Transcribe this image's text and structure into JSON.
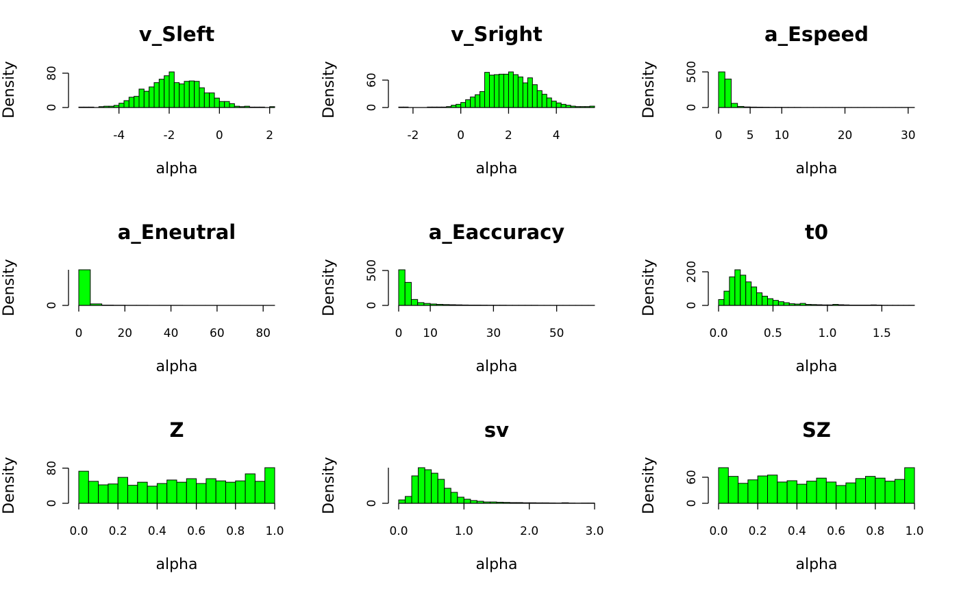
{
  "chart_data": [
    {
      "type": "histogram",
      "title": "v_Sleft",
      "xlabel": "alpha",
      "ylabel": "Density",
      "color": "#00ff00",
      "bins": [
        -5.6,
        -5.4,
        -5.2,
        -5,
        -4.8,
        -4.6,
        -4.4,
        -4.2,
        -4,
        -3.8,
        -3.6,
        -3.4,
        -3.2,
        -3,
        -2.8,
        -2.6,
        -2.4,
        -2.2,
        -2,
        -1.8,
        -1.6,
        -1.4,
        -1.2,
        -1,
        -0.8,
        -0.6,
        -0.4,
        -0.2,
        0,
        0.2,
        0.4,
        0.6,
        0.8,
        1,
        1.2,
        1.4,
        1.6,
        1.8,
        2,
        2.2
      ],
      "values": [
        1,
        1,
        1,
        0,
        2,
        3,
        3,
        5,
        10,
        16,
        24,
        26,
        43,
        38,
        48,
        58,
        66,
        74,
        83,
        58,
        55,
        61,
        62,
        61,
        46,
        34,
        34,
        22,
        14,
        14,
        9,
        3,
        2,
        3,
        1,
        1,
        1,
        0,
        2
      ],
      "xlim": [
        -5.6,
        2.2
      ],
      "ylim": [
        0,
        83
      ],
      "xticks": [
        -4,
        -2,
        0,
        2
      ],
      "yticks": [
        0,
        80
      ]
    },
    {
      "type": "histogram",
      "title": "v_Sright",
      "xlabel": "alpha",
      "ylabel": "Density",
      "color": "#00ff00",
      "bins": [
        -2.6,
        -2.4,
        -2.2,
        -2,
        -1.8,
        -1.6,
        -1.4,
        -1.2,
        -1,
        -0.8,
        -0.6,
        -0.4,
        -0.2,
        0,
        0.2,
        0.4,
        0.6,
        0.8,
        1,
        1.2,
        1.4,
        1.6,
        1.8,
        2,
        2.2,
        2.4,
        2.6,
        2.8,
        3,
        3.2,
        3.4,
        3.6,
        3.8,
        4,
        4.2,
        4.4,
        4.6,
        4.8,
        5,
        5.2,
        5.4,
        5.6
      ],
      "values": [
        1,
        1,
        0,
        0,
        0,
        0,
        1,
        1,
        1,
        1,
        2,
        5,
        7,
        11,
        17,
        23,
        28,
        35,
        77,
        71,
        72,
        73,
        73,
        78,
        72,
        67,
        54,
        65,
        50,
        37,
        29,
        21,
        14,
        10,
        7,
        5,
        3,
        2,
        2,
        2,
        3
      ],
      "xlim": [
        -2.6,
        5.6
      ],
      "ylim": [
        0,
        78
      ],
      "xticks": [
        -2,
        0,
        2,
        4
      ],
      "yticks": [
        0,
        60
      ]
    },
    {
      "type": "histogram",
      "title": "a_Espeed",
      "xlabel": "alpha",
      "ylabel": "Density",
      "color": "#00ff00",
      "bins": [
        0,
        1,
        2,
        3,
        4,
        5,
        6,
        7,
        8,
        9,
        10,
        11,
        12,
        13,
        14,
        15,
        16,
        17,
        18,
        19,
        20,
        21,
        22,
        23,
        24,
        25,
        26,
        27,
        28,
        29,
        30,
        31
      ],
      "values": [
        500,
        400,
        58,
        15,
        8,
        6,
        5,
        4,
        3,
        3,
        2,
        2,
        2,
        1,
        1,
        1,
        1,
        1,
        1,
        1,
        1,
        1,
        1,
        1,
        1,
        1,
        1,
        1,
        1,
        1,
        1
      ],
      "xlim": [
        0,
        31
      ],
      "ylim": [
        0,
        500
      ],
      "xticks": [
        0,
        5,
        10,
        20,
        30
      ],
      "yticks": [
        0,
        500
      ]
    },
    {
      "type": "histogram",
      "title": "a_Eneutral",
      "xlabel": "alpha",
      "ylabel": "Density",
      "color": "#00ff00",
      "bins": [
        0,
        5,
        10,
        15,
        20,
        25,
        30,
        35,
        40,
        45,
        50,
        55,
        60,
        65,
        70,
        75,
        80,
        85
      ],
      "values": [
        950,
        40,
        8,
        5,
        3,
        3,
        2,
        2,
        2,
        1,
        1,
        1,
        1,
        1,
        1,
        1,
        1
      ],
      "xlim": [
        0,
        85
      ],
      "ylim": [
        0,
        950
      ],
      "xticks": [
        0,
        20,
        40,
        60,
        80
      ],
      "yticks": [
        0
      ]
    },
    {
      "type": "histogram",
      "title": "a_Eaccuracy",
      "xlabel": "alpha",
      "ylabel": "Density",
      "color": "#00ff00",
      "bins": [
        0,
        2,
        4,
        6,
        8,
        10,
        12,
        14,
        16,
        18,
        20,
        22,
        24,
        26,
        28,
        30,
        32,
        34,
        36,
        38,
        40,
        42,
        44,
        46,
        48,
        50,
        52,
        54,
        56,
        58,
        60,
        62
      ],
      "values": [
        510,
        330,
        85,
        40,
        28,
        20,
        15,
        12,
        10,
        8,
        6,
        5,
        5,
        4,
        3,
        3,
        3,
        2,
        2,
        2,
        2,
        2,
        1,
        1,
        1,
        1,
        1,
        1,
        1,
        1,
        1
      ],
      "xlim": [
        0,
        62
      ],
      "ylim": [
        0,
        510
      ],
      "xticks": [
        0,
        10,
        30,
        50
      ],
      "yticks": [
        0,
        500
      ]
    },
    {
      "type": "histogram",
      "title": "t0",
      "xlabel": "alpha",
      "ylabel": "Density",
      "color": "#00ff00",
      "bins": [
        0,
        0.05,
        0.1,
        0.15,
        0.2,
        0.25,
        0.3,
        0.35,
        0.4,
        0.45,
        0.5,
        0.55,
        0.6,
        0.65,
        0.7,
        0.75,
        0.8,
        0.85,
        0.9,
        0.95,
        1,
        1.05,
        1.1,
        1.15,
        1.2,
        1.25,
        1.3,
        1.35,
        1.4,
        1.45,
        1.5,
        1.55,
        1.6,
        1.65,
        1.7,
        1.75,
        1.8
      ],
      "values": [
        35,
        85,
        170,
        212,
        180,
        140,
        110,
        75,
        55,
        40,
        30,
        22,
        16,
        10,
        8,
        12,
        6,
        5,
        4,
        3,
        3,
        6,
        4,
        3,
        2,
        2,
        2,
        2,
        3,
        2,
        1,
        1,
        1,
        1,
        1,
        1
      ],
      "xlim": [
        0,
        1.8
      ],
      "ylim": [
        0,
        212
      ],
      "xticks": [
        {
          "value": 0,
          "label": "0.0"
        },
        0.5,
        {
          "value": 1,
          "label": "1.0"
        },
        1.5
      ],
      "yticks": [
        0,
        200
      ]
    },
    {
      "type": "histogram",
      "title": "Z",
      "xlabel": "alpha",
      "ylabel": "Density",
      "color": "#00ff00",
      "bins": [
        0,
        0.05,
        0.1,
        0.15,
        0.2,
        0.25,
        0.3,
        0.35,
        0.4,
        0.45,
        0.5,
        0.55,
        0.6,
        0.65,
        0.7,
        0.75,
        0.8,
        0.85,
        0.9,
        0.95,
        1
      ],
      "values": [
        73,
        50,
        42,
        44,
        59,
        41,
        48,
        39,
        45,
        53,
        48,
        56,
        45,
        56,
        51,
        48,
        51,
        67,
        50,
        81
      ],
      "xlim": [
        0,
        1
      ],
      "ylim": [
        0,
        81
      ],
      "xticks": [
        {
          "value": 0,
          "label": "0.0"
        },
        0.2,
        0.4,
        0.6,
        0.8,
        {
          "value": 1,
          "label": "1.0"
        }
      ],
      "yticks": [
        0,
        80
      ]
    },
    {
      "type": "histogram",
      "title": "sv",
      "xlabel": "alpha",
      "ylabel": "Density",
      "color": "#00ff00",
      "bins": [
        0,
        0.1,
        0.2,
        0.3,
        0.4,
        0.5,
        0.6,
        0.7,
        0.8,
        0.9,
        1,
        1.1,
        1.2,
        1.3,
        1.4,
        1.5,
        1.6,
        1.7,
        1.8,
        1.9,
        2,
        2.1,
        2.2,
        2.3,
        2.4,
        2.5,
        2.6,
        2.7,
        2.8,
        2.9,
        3
      ],
      "values": [
        38,
        77,
        308,
        400,
        377,
        338,
        269,
        169,
        123,
        69,
        46,
        31,
        23,
        15,
        15,
        12,
        10,
        8,
        8,
        6,
        6,
        5,
        5,
        4,
        3,
        6,
        3,
        2,
        3,
        3
      ],
      "xlim": [
        0,
        3
      ],
      "ylim": [
        0,
        400
      ],
      "xticks": [
        {
          "value": 0,
          "label": "0.0"
        },
        {
          "value": 1,
          "label": "1.0"
        },
        {
          "value": 2,
          "label": "2.0"
        },
        {
          "value": 3,
          "label": "3.0"
        }
      ],
      "yticks": [
        0
      ]
    },
    {
      "type": "histogram",
      "title": "SZ",
      "xlabel": "alpha",
      "ylabel": "Density",
      "color": "#00ff00",
      "bins": [
        0,
        0.05,
        0.1,
        0.15,
        0.2,
        0.25,
        0.3,
        0.35,
        0.4,
        0.45,
        0.5,
        0.55,
        0.6,
        0.65,
        0.7,
        0.75,
        0.8,
        0.85,
        0.9,
        0.95,
        1
      ],
      "values": [
        82,
        62,
        46,
        54,
        63,
        65,
        49,
        52,
        44,
        51,
        58,
        49,
        41,
        47,
        57,
        62,
        58,
        51,
        55,
        82
      ],
      "xlim": [
        0,
        1
      ],
      "ylim": [
        0,
        82
      ],
      "xticks": [
        {
          "value": 0,
          "label": "0.0"
        },
        0.2,
        0.4,
        0.6,
        0.8,
        {
          "value": 1,
          "label": "1.0"
        }
      ],
      "yticks": [
        0,
        60
      ]
    }
  ]
}
